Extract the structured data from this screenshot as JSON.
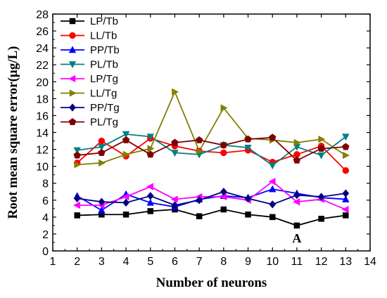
{
  "chart_data": {
    "type": "line",
    "xlabel": "Number of neurons",
    "ylabel": "Root mean square error(μg/L)",
    "xlim": [
      1,
      14
    ],
    "ylim": [
      0,
      28
    ],
    "xticks": [
      1,
      2,
      3,
      4,
      5,
      6,
      7,
      8,
      9,
      10,
      11,
      12,
      13,
      14
    ],
    "yticks": [
      0,
      2,
      4,
      6,
      8,
      10,
      12,
      14,
      16,
      18,
      20,
      22,
      24,
      26,
      28
    ],
    "grid": false,
    "legend_position": "top-left",
    "x": [
      2,
      3,
      4,
      5,
      6,
      7,
      8,
      9,
      10,
      11,
      12,
      13
    ],
    "series": [
      {
        "name": "LP/Tb",
        "color": "#000000",
        "marker": "square",
        "values": [
          4.2,
          4.3,
          4.3,
          4.7,
          4.9,
          4.1,
          4.9,
          4.3,
          4.0,
          3.0,
          3.8,
          4.2
        ]
      },
      {
        "name": "LL/Tb",
        "color": "#ff0000",
        "marker": "circle",
        "values": [
          10.4,
          13.0,
          11.2,
          13.3,
          12.4,
          11.8,
          11.6,
          11.9,
          10.5,
          11.4,
          12.4,
          9.5
        ]
      },
      {
        "name": "PP/Tb",
        "color": "#0000ff",
        "marker": "triangle-up",
        "values": [
          6.5,
          4.8,
          6.7,
          5.7,
          5.2,
          6.1,
          6.5,
          6.3,
          7.3,
          6.8,
          6.3,
          6.1
        ]
      },
      {
        "name": "PL/Tb",
        "color": "#008080",
        "marker": "triangle-down",
        "values": [
          11.9,
          12.3,
          13.8,
          13.5,
          11.6,
          11.4,
          12.5,
          12.2,
          10.1,
          12.3,
          11.3,
          13.5
        ]
      },
      {
        "name": "LP/Tg",
        "color": "#ff00ff",
        "marker": "triangle-left",
        "values": [
          5.4,
          5.4,
          6.4,
          7.6,
          6.1,
          6.4,
          6.4,
          6.0,
          8.2,
          5.8,
          6.1,
          4.9
        ]
      },
      {
        "name": "LL/Tg",
        "color": "#808000",
        "marker": "triangle-right",
        "values": [
          10.2,
          10.4,
          11.4,
          12.1,
          18.8,
          11.8,
          16.9,
          13.3,
          13.1,
          12.8,
          13.2,
          11.3
        ]
      },
      {
        "name": "PP/Tg",
        "color": "#000080",
        "marker": "diamond",
        "values": [
          6.2,
          5.8,
          5.7,
          6.5,
          5.4,
          6.0,
          7.0,
          6.2,
          5.5,
          6.6,
          6.4,
          6.8
        ]
      },
      {
        "name": "PL/Tg",
        "color": "#800000",
        "marker": "pentagon",
        "values": [
          11.3,
          11.6,
          13.1,
          11.4,
          12.8,
          13.1,
          12.5,
          13.2,
          13.4,
          10.7,
          12.1,
          12.3
        ]
      }
    ],
    "annotations": [
      {
        "text": "A",
        "x": 11,
        "y": 1.5
      }
    ]
  }
}
